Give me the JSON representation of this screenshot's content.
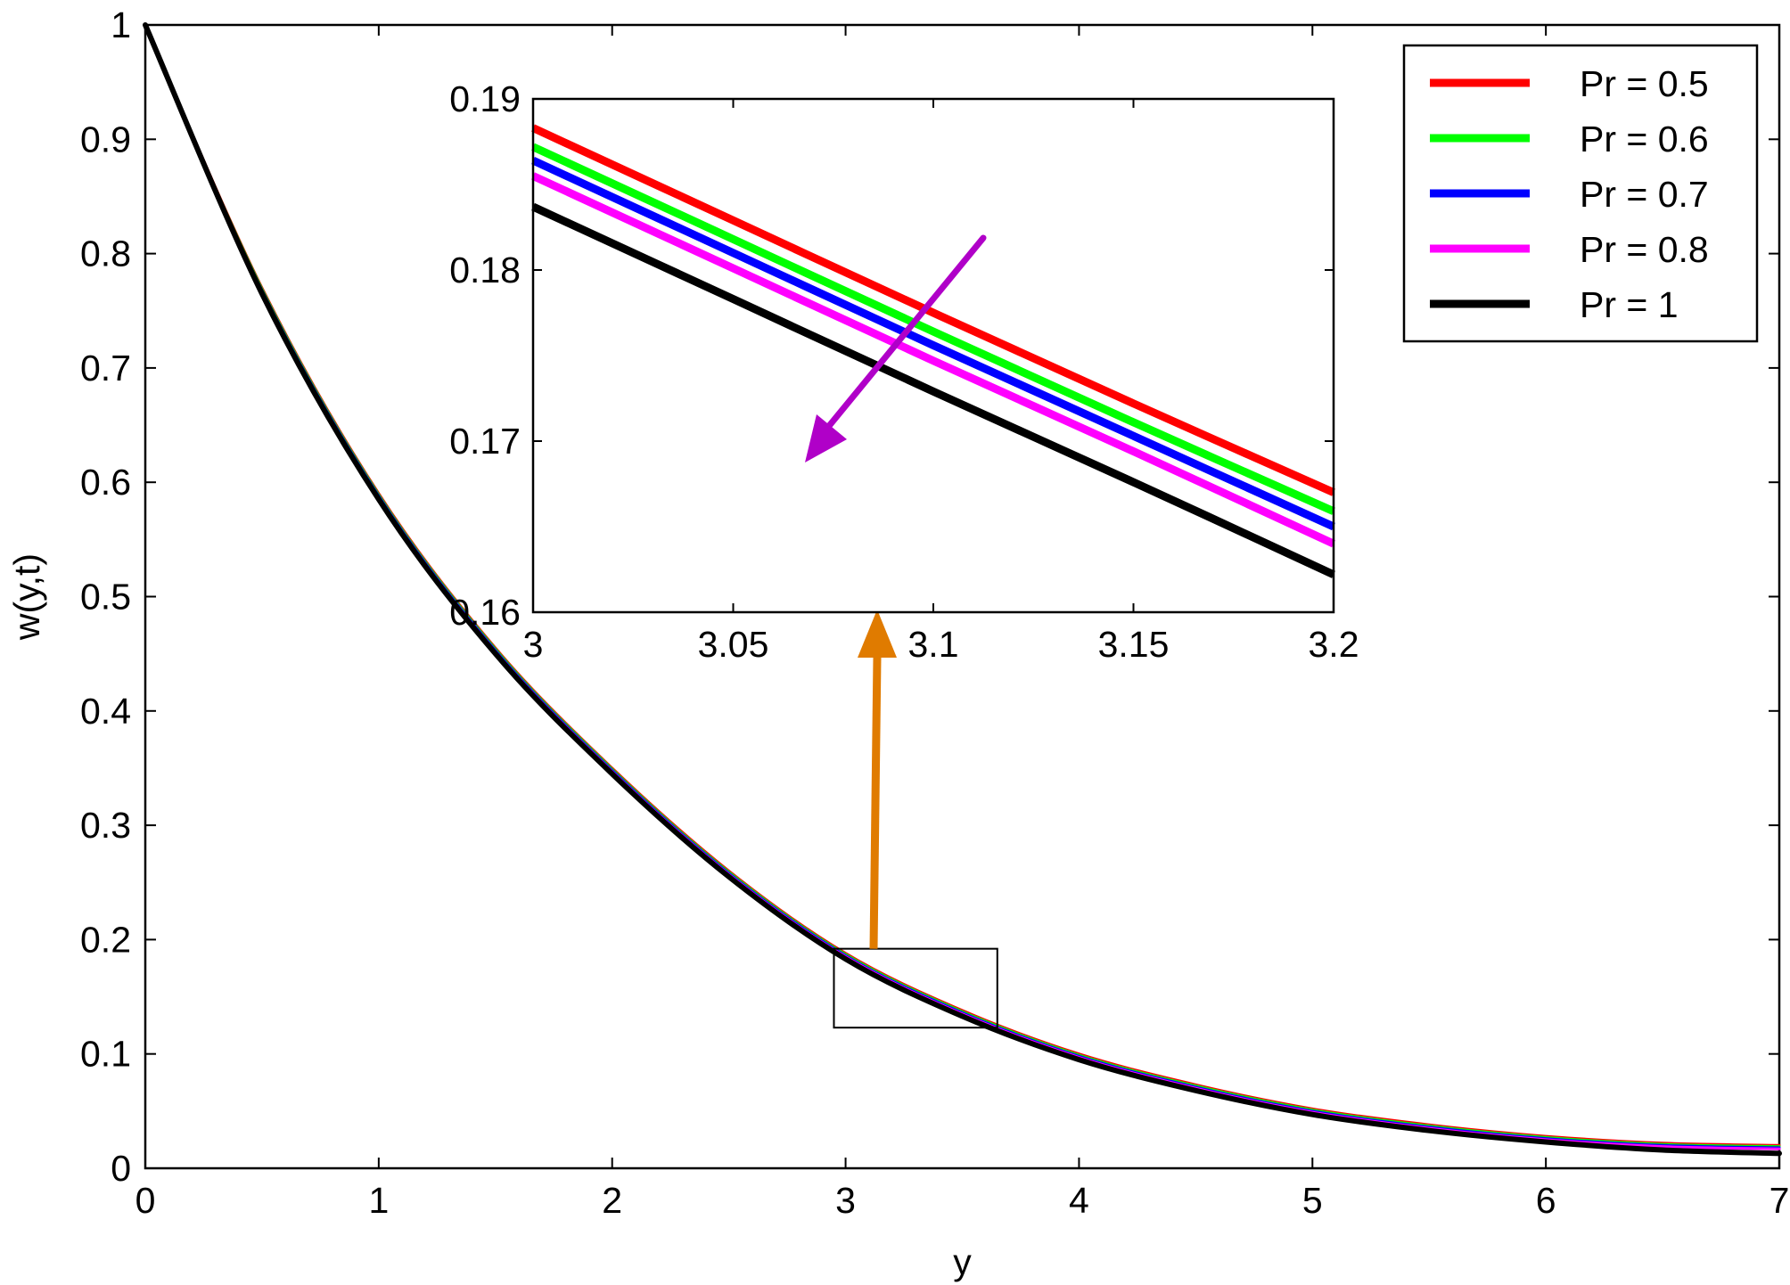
{
  "chart_data": [
    {
      "type": "line",
      "title": "",
      "xlabel": "y",
      "ylabel": "w(y,t)",
      "xlim": [
        0,
        7
      ],
      "ylim": [
        0,
        1
      ],
      "xticks": [
        0,
        1,
        2,
        3,
        4,
        5,
        6,
        7
      ],
      "xtick_labels": [
        "0",
        "1",
        "2",
        "3",
        "4",
        "5",
        "6",
        "7"
      ],
      "yticks": [
        0,
        0.1,
        0.2,
        0.3,
        0.4,
        0.5,
        0.6,
        0.7,
        0.8,
        0.9,
        1
      ],
      "ytick_labels": [
        "0",
        "0.1",
        "0.2",
        "0.3",
        "0.4",
        "0.5",
        "0.6",
        "0.7",
        "0.8",
        "0.9",
        "1"
      ],
      "grid": false,
      "legend_position": "top-right",
      "x": [
        0,
        0.5,
        1,
        1.5,
        2,
        2.5,
        3,
        3.5,
        4,
        4.5,
        5,
        5.5,
        6,
        6.5,
        7
      ],
      "series": [
        {
          "name": "Pr = 0.5",
          "color": "#ff0000",
          "values": [
            1.0,
            0.77,
            0.59,
            0.455,
            0.35,
            0.26,
            0.188,
            0.138,
            0.1,
            0.073,
            0.052,
            0.038,
            0.028,
            0.022,
            0.02
          ]
        },
        {
          "name": "Pr = 0.6",
          "color": "#00ff00",
          "values": [
            1.0,
            0.769,
            0.589,
            0.454,
            0.349,
            0.259,
            0.187,
            0.137,
            0.099,
            0.072,
            0.051,
            0.037,
            0.027,
            0.021,
            0.019
          ]
        },
        {
          "name": "Pr = 0.7",
          "color": "#0000ff",
          "values": [
            1.0,
            0.768,
            0.588,
            0.453,
            0.348,
            0.258,
            0.186,
            0.136,
            0.098,
            0.071,
            0.05,
            0.036,
            0.026,
            0.02,
            0.018
          ]
        },
        {
          "name": "Pr = 0.8",
          "color": "#ff00ff",
          "values": [
            1.0,
            0.767,
            0.587,
            0.452,
            0.347,
            0.257,
            0.185,
            0.135,
            0.097,
            0.07,
            0.049,
            0.035,
            0.025,
            0.019,
            0.017
          ]
        },
        {
          "name": "Pr = 1",
          "color": "#000000",
          "values": [
            1.0,
            0.765,
            0.585,
            0.45,
            0.345,
            0.255,
            0.183,
            0.133,
            0.095,
            0.068,
            0.047,
            0.033,
            0.023,
            0.016,
            0.013
          ]
        }
      ],
      "annotations": [
        {
          "type": "zoom-box",
          "x_range": [
            2.95,
            3.65
          ],
          "y_range": [
            0.123,
            0.192
          ]
        },
        {
          "type": "arrow",
          "color": "#e07b00",
          "meaning": "points from zoom box to inset"
        }
      ]
    },
    {
      "type": "line",
      "title": "",
      "role": "inset",
      "xlabel": "",
      "ylabel": "",
      "xlim": [
        3,
        3.2
      ],
      "ylim": [
        0.16,
        0.19
      ],
      "xticks": [
        3,
        3.05,
        3.1,
        3.15,
        3.2
      ],
      "xtick_labels": [
        "3",
        "3.05",
        "3.1",
        "3.15",
        "3.2"
      ],
      "yticks": [
        0.16,
        0.17,
        0.18,
        0.19
      ],
      "ytick_labels": [
        "0.16",
        "0.17",
        "0.18",
        "0.19"
      ],
      "x": [
        3,
        3.05,
        3.1,
        3.15,
        3.2
      ],
      "series": [
        {
          "name": "Pr = 0.5",
          "color": "#ff0000",
          "values": [
            0.1883,
            0.1829,
            0.1775,
            0.1722,
            0.167
          ]
        },
        {
          "name": "Pr = 0.6",
          "color": "#00ff00",
          "values": [
            0.1872,
            0.1818,
            0.1764,
            0.1711,
            0.1659
          ]
        },
        {
          "name": "Pr = 0.7",
          "color": "#0000ff",
          "values": [
            0.1864,
            0.181,
            0.1756,
            0.1703,
            0.165
          ]
        },
        {
          "name": "Pr = 0.8",
          "color": "#ff00ff",
          "values": [
            0.1855,
            0.1801,
            0.1747,
            0.1694,
            0.164
          ]
        },
        {
          "name": "Pr = 1",
          "color": "#000000",
          "values": [
            0.1837,
            0.1783,
            0.1729,
            0.1676,
            0.1622
          ]
        }
      ],
      "annotations": [
        {
          "type": "arrow",
          "color": "#b000c8",
          "meaning": "direction of increasing Pr"
        }
      ]
    }
  ]
}
